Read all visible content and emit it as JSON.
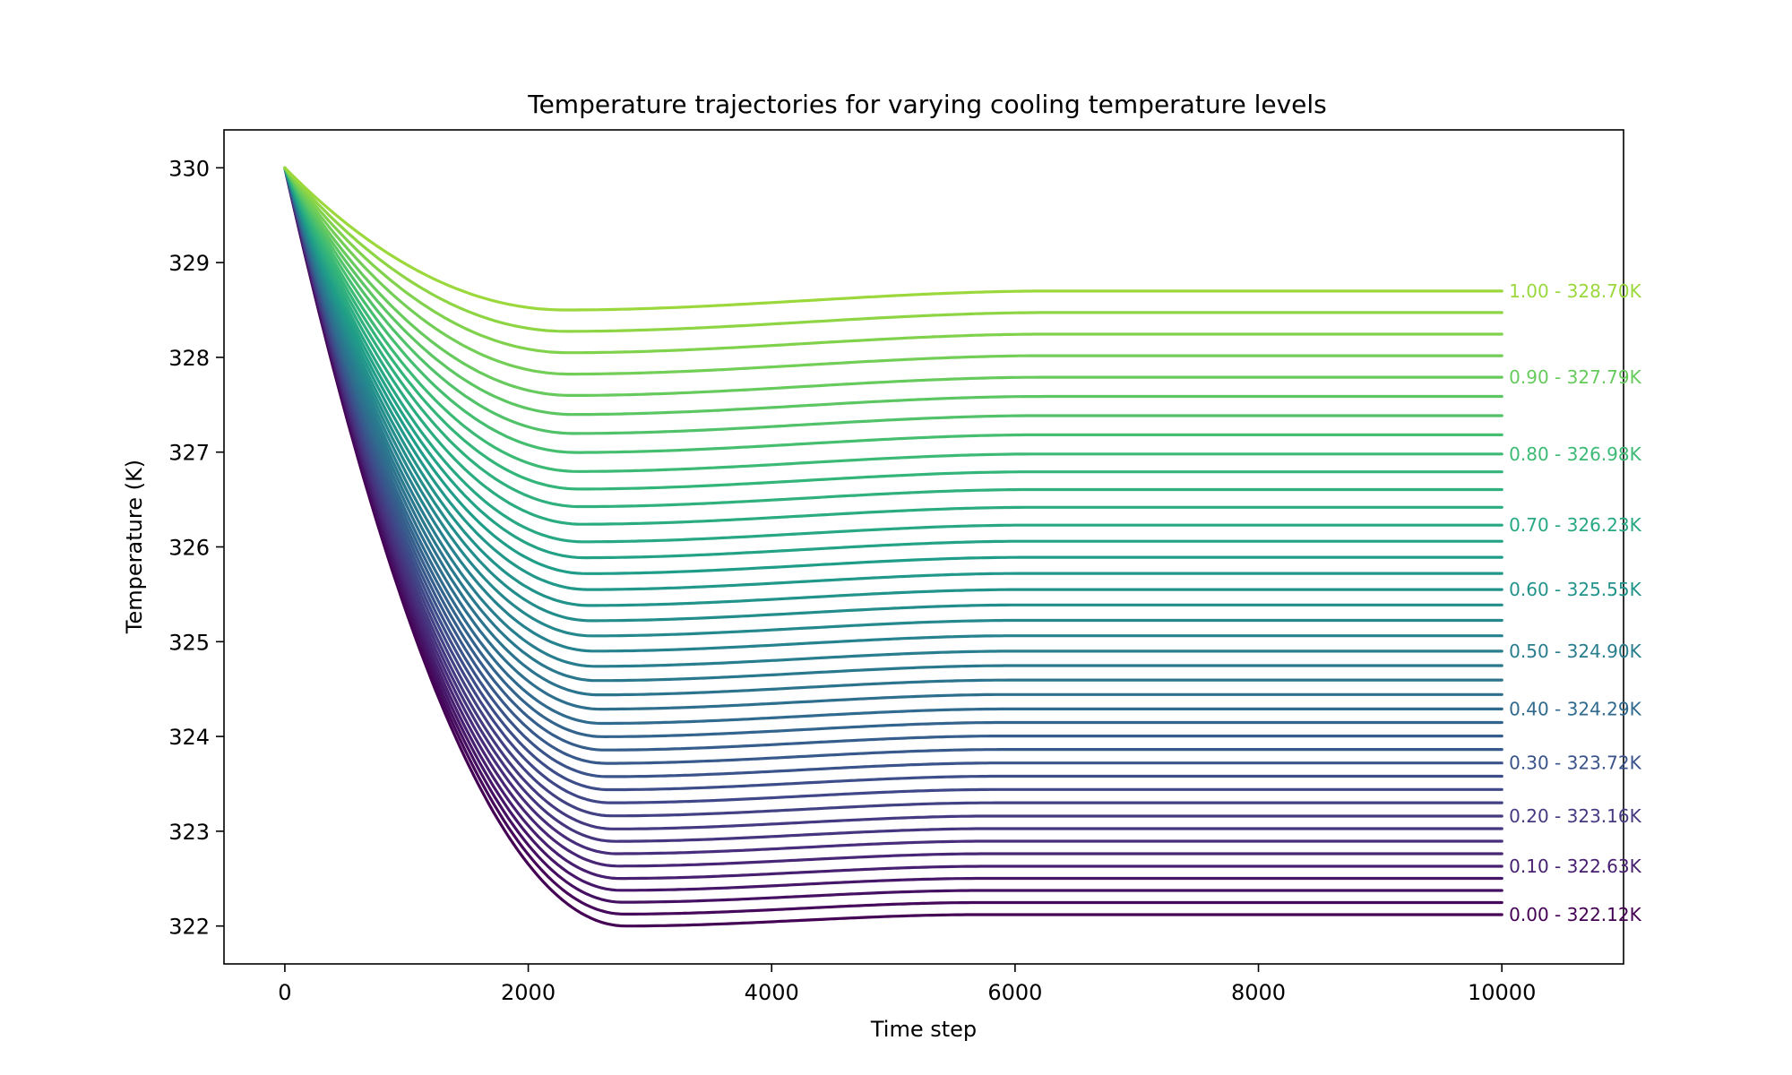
{
  "chart_data": {
    "type": "line",
    "title": "Temperature trajectories for varying cooling temperature levels",
    "xlabel": "Time step",
    "ylabel": "Temperature (K)",
    "xlim": [
      -500,
      11000
    ],
    "ylim": [
      321.6,
      330.4
    ],
    "xticks": [
      0,
      2000,
      4000,
      6000,
      8000,
      10000
    ],
    "xtick_labels": [
      "0",
      "2000",
      "4000",
      "6000",
      "8000",
      "10000"
    ],
    "yticks": [
      322,
      323,
      324,
      325,
      326,
      327,
      328,
      329,
      330
    ],
    "ytick_labels": [
      "322",
      "323",
      "324",
      "325",
      "326",
      "327",
      "328",
      "329",
      "330"
    ],
    "grid": false,
    "colormap": "viridis",
    "initial_temperature": 330,
    "x_end": 10000,
    "series_count": 41,
    "series_levels": [
      0.0,
      0.025,
      0.05,
      0.075,
      0.1,
      0.125,
      0.15,
      0.175,
      0.2,
      0.225,
      0.25,
      0.275,
      0.3,
      0.325,
      0.35,
      0.375,
      0.4,
      0.425,
      0.45,
      0.475,
      0.5,
      0.525,
      0.55,
      0.575,
      0.6,
      0.625,
      0.65,
      0.675,
      0.7,
      0.725,
      0.75,
      0.775,
      0.8,
      0.825,
      0.85,
      0.875,
      0.9,
      0.925,
      0.95,
      0.975,
      1.0
    ],
    "steady_state_anchors": [
      {
        "level": 0.0,
        "value": 322.12
      },
      {
        "level": 0.1,
        "value": 322.63
      },
      {
        "level": 0.2,
        "value": 323.16
      },
      {
        "level": 0.3,
        "value": 323.72
      },
      {
        "level": 0.4,
        "value": 324.29
      },
      {
        "level": 0.5,
        "value": 324.9
      },
      {
        "level": 0.6,
        "value": 325.55
      },
      {
        "level": 0.7,
        "value": 326.23
      },
      {
        "level": 0.8,
        "value": 326.98
      },
      {
        "level": 0.9,
        "value": 327.79
      },
      {
        "level": 1.0,
        "value": 328.7
      }
    ],
    "minimum_anchors": [
      {
        "level": 0.0,
        "x": 2800,
        "value": 322.0
      },
      {
        "level": 1.0,
        "x": 2300,
        "value": 328.5
      }
    ],
    "end_labels": [
      {
        "text": "1.00 - 328.70K",
        "value": 328.7,
        "level": 1.0
      },
      {
        "text": "0.90 - 327.79K",
        "value": 327.79,
        "level": 0.9
      },
      {
        "text": "0.80 - 326.98K",
        "value": 326.98,
        "level": 0.8
      },
      {
        "text": "0.70 - 326.23K",
        "value": 326.23,
        "level": 0.7
      },
      {
        "text": "0.60 - 325.55K",
        "value": 325.55,
        "level": 0.6
      },
      {
        "text": "0.50 - 324.90K",
        "value": 324.9,
        "level": 0.5
      },
      {
        "text": "0.40 - 324.29K",
        "value": 324.29,
        "level": 0.4
      },
      {
        "text": "0.30 - 323.72K",
        "value": 323.72,
        "level": 0.3
      },
      {
        "text": "0.20 - 323.16K",
        "value": 323.16,
        "level": 0.2
      },
      {
        "text": "0.10 - 322.63K",
        "value": 322.63,
        "level": 0.1
      },
      {
        "text": "0.00 - 322.12K",
        "value": 322.12,
        "level": 0.0
      }
    ]
  }
}
